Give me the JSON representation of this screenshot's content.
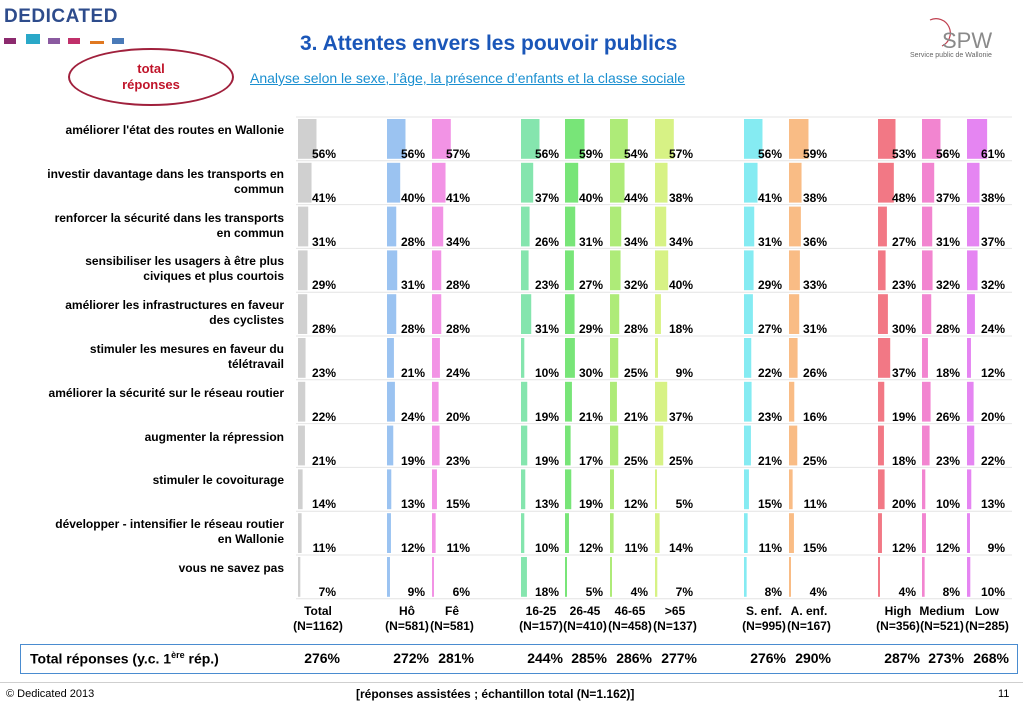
{
  "header": {
    "logo_text": "DEDICATED",
    "logo_square_colors": [
      "#8c2a6e",
      "#2aa8c8",
      "#8a5aa0",
      "#c0306a",
      "#e07820",
      "#4a7ab8"
    ],
    "title": "3. Attentes envers les pouvoir publics",
    "subtitle": "Analyse selon le sexe, l’âge, la présence d’enfants et la classe sociale",
    "oval_label": "total\nréponses",
    "spw_logo": "SPW",
    "spw_subtitle": "Service public de Wallonie"
  },
  "chart_data": {
    "type": "bar",
    "categories": [
      "améliorer l'état des routes en Wallonie",
      "investir davantage dans les transports en commun",
      "renforcer la sécurité dans les transports en commun",
      "sensibiliser les usagers à être plus civiques et plus courtois",
      "améliorer les infrastructures en faveur des cyclistes",
      "stimuler les mesures en faveur du télétravail",
      "améliorer la sécurité sur le réseau routier",
      "augmenter la répression",
      "stimuler le covoiturage",
      "développer - intensifier le réseau routier en Wallonie",
      "vous ne savez pas"
    ],
    "series": [
      {
        "name": "Total\n(N=1162)",
        "color": "#c8c8c8",
        "values": [
          56,
          41,
          31,
          29,
          28,
          23,
          22,
          21,
          14,
          11,
          7
        ],
        "total": "276%"
      },
      {
        "name": "Hô\n(N=581)",
        "color": "#8ab8ee",
        "values": [
          56,
          40,
          28,
          31,
          28,
          21,
          24,
          19,
          13,
          12,
          9
        ],
        "total": "272%"
      },
      {
        "name": "Fê\n(N=581)",
        "color": "#f080e0",
        "values": [
          57,
          41,
          34,
          28,
          28,
          24,
          20,
          23,
          15,
          11,
          6
        ],
        "total": "281%"
      },
      {
        "name": "16-25\n(N=157)",
        "color": "#70e0a0",
        "values": [
          56,
          37,
          26,
          23,
          31,
          10,
          19,
          19,
          13,
          10,
          18
        ],
        "total": "244%"
      },
      {
        "name": "26-45\n(N=410)",
        "color": "#60e060",
        "values": [
          59,
          40,
          31,
          27,
          29,
          30,
          21,
          17,
          19,
          12,
          5
        ],
        "total": "285%"
      },
      {
        "name": "46-65\n(N=458)",
        "color": "#a0e860",
        "values": [
          54,
          44,
          34,
          32,
          28,
          25,
          21,
          25,
          12,
          11,
          4
        ],
        "total": "286%"
      },
      {
        "name": ">65\n(N=137)",
        "color": "#d0f070",
        "values": [
          57,
          38,
          34,
          40,
          18,
          9,
          37,
          25,
          5,
          14,
          7
        ],
        "total": "277%"
      },
      {
        "name": "S. enf.\n(N=995)",
        "color": "#70e8f0",
        "values": [
          56,
          41,
          31,
          29,
          27,
          22,
          23,
          21,
          15,
          11,
          8
        ],
        "total": "276%"
      },
      {
        "name": "A. enf.\n(N=167)",
        "color": "#f8b070",
        "values": [
          59,
          38,
          36,
          33,
          31,
          26,
          16,
          25,
          11,
          15,
          4
        ],
        "total": "290%"
      },
      {
        "name": "High\n(N=356)",
        "color": "#f06070",
        "values": [
          53,
          48,
          27,
          23,
          30,
          37,
          19,
          18,
          20,
          12,
          4
        ],
        "total": "287%"
      },
      {
        "name": "Medium\n(N=521)",
        "color": "#f070c8",
        "values": [
          56,
          37,
          31,
          32,
          28,
          18,
          26,
          23,
          10,
          12,
          8
        ],
        "total": "273%"
      },
      {
        "name": "Low\n(N=285)",
        "color": "#e070f0",
        "values": [
          61,
          38,
          37,
          32,
          24,
          12,
          20,
          22,
          13,
          9,
          10
        ],
        "total": "268%"
      }
    ],
    "unit": "%",
    "ylim": [
      0,
      100
    ]
  },
  "totals_row": {
    "label": "Total réponses (y.c. 1",
    "label_sup": "ère",
    "label_end": " rép.)"
  },
  "footer": {
    "copyright": "© Dedicated 2013",
    "note": "[réponses assistées ; échantillon total (N=1.162)]",
    "page": "11"
  }
}
